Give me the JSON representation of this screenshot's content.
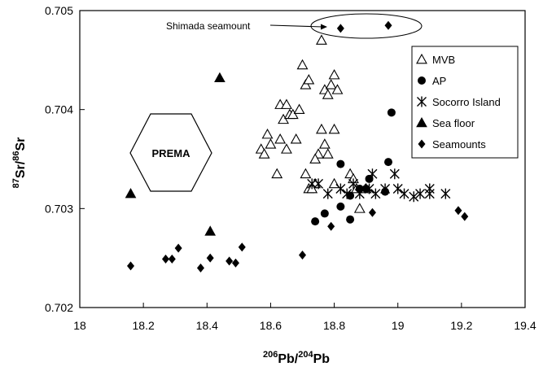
{
  "chart_data": {
    "type": "scatter",
    "xlim": [
      18,
      19.4
    ],
    "ylim": [
      0.702,
      0.705
    ],
    "x_ticks": [
      "18",
      "18.2",
      "18.4",
      "18.6",
      "18.8",
      "19",
      "19.2",
      "19.4"
    ],
    "y_ticks": [
      "0.702",
      "0.703",
      "0.704",
      "0.705"
    ],
    "xlabel": {
      "sup1": "206",
      "main1": "Pb/",
      "sup2": "204",
      "main2": "Pb"
    },
    "ylabel": {
      "sup1": "87",
      "main1": "Sr/",
      "sup2": "86",
      "main2": "Sr"
    },
    "grid": false,
    "legend_position": "top-right",
    "series": [
      {
        "name": "MVB",
        "marker": "triangle-open",
        "points": [
          [
            18.57,
            0.7036
          ],
          [
            18.58,
            0.70355
          ],
          [
            18.59,
            0.70375
          ],
          [
            18.6,
            0.70365
          ],
          [
            18.63,
            0.70405
          ],
          [
            18.64,
            0.7039
          ],
          [
            18.65,
            0.70405
          ],
          [
            18.66,
            0.70395
          ],
          [
            18.67,
            0.70395
          ],
          [
            18.68,
            0.7037
          ],
          [
            18.69,
            0.704
          ],
          [
            18.7,
            0.70445
          ],
          [
            18.71,
            0.70425
          ],
          [
            18.72,
            0.7043
          ],
          [
            18.76,
            0.7047
          ],
          [
            18.77,
            0.7042
          ],
          [
            18.78,
            0.70415
          ],
          [
            18.79,
            0.70425
          ],
          [
            18.8,
            0.70435
          ],
          [
            18.81,
            0.7042
          ],
          [
            18.8,
            0.7038
          ],
          [
            18.76,
            0.7038
          ],
          [
            18.77,
            0.70365
          ],
          [
            18.75,
            0.70355
          ],
          [
            18.74,
            0.7035
          ],
          [
            18.63,
            0.7037
          ],
          [
            18.65,
            0.7036
          ],
          [
            18.62,
            0.70335
          ],
          [
            18.71,
            0.70335
          ],
          [
            18.74,
            0.70325
          ],
          [
            18.72,
            0.7032
          ],
          [
            18.73,
            0.7032
          ],
          [
            18.78,
            0.70355
          ],
          [
            18.85,
            0.70335
          ],
          [
            18.86,
            0.7033
          ],
          [
            18.87,
            0.7032
          ],
          [
            18.88,
            0.703
          ],
          [
            18.9,
            0.7032
          ],
          [
            18.8,
            0.70325
          ]
        ]
      },
      {
        "name": "AP",
        "marker": "circle",
        "points": [
          [
            18.98,
            0.70397
          ],
          [
            18.82,
            0.70345
          ],
          [
            18.97,
            0.70347
          ],
          [
            18.88,
            0.7032
          ],
          [
            18.9,
            0.7032
          ],
          [
            18.91,
            0.7033
          ],
          [
            18.96,
            0.70317
          ],
          [
            18.85,
            0.70313
          ],
          [
            18.82,
            0.70302
          ],
          [
            18.77,
            0.70295
          ],
          [
            18.74,
            0.70287
          ],
          [
            18.85,
            0.70289
          ]
        ]
      },
      {
        "name": "Socorro Island",
        "marker": "asterisk",
        "points": [
          [
            18.73,
            0.70325
          ],
          [
            18.75,
            0.70325
          ],
          [
            18.78,
            0.70315
          ],
          [
            18.82,
            0.7032
          ],
          [
            18.84,
            0.70315
          ],
          [
            18.86,
            0.70325
          ],
          [
            18.88,
            0.70315
          ],
          [
            18.91,
            0.7032
          ],
          [
            18.92,
            0.70335
          ],
          [
            18.93,
            0.70315
          ],
          [
            18.96,
            0.7032
          ],
          [
            18.99,
            0.70335
          ],
          [
            19.0,
            0.7032
          ],
          [
            19.02,
            0.70315
          ],
          [
            19.05,
            0.70312
          ],
          [
            19.07,
            0.70315
          ],
          [
            19.1,
            0.7032
          ],
          [
            19.1,
            0.70315
          ],
          [
            19.15,
            0.70315
          ]
        ]
      },
      {
        "name": "Sea floor",
        "marker": "triangle-filled",
        "points": [
          [
            18.16,
            0.70315
          ],
          [
            18.41,
            0.70277
          ],
          [
            18.44,
            0.70432
          ]
        ]
      },
      {
        "name": "Seamounts",
        "marker": "diamond",
        "points": [
          [
            18.82,
            0.70482
          ],
          [
            18.97,
            0.70485
          ],
          [
            18.16,
            0.70242
          ],
          [
            18.27,
            0.70249
          ],
          [
            18.29,
            0.70249
          ],
          [
            18.31,
            0.7026
          ],
          [
            18.38,
            0.7024
          ],
          [
            18.41,
            0.7025
          ],
          [
            18.47,
            0.70247
          ],
          [
            18.49,
            0.70245
          ],
          [
            18.51,
            0.70261
          ],
          [
            18.7,
            0.70253
          ],
          [
            18.79,
            0.70282
          ],
          [
            18.92,
            0.70296
          ],
          [
            19.19,
            0.70298
          ],
          [
            19.21,
            0.70292
          ]
        ]
      }
    ],
    "annotations": {
      "shimada_label": "Shimada seamount",
      "prema_label": "PREMA"
    }
  }
}
